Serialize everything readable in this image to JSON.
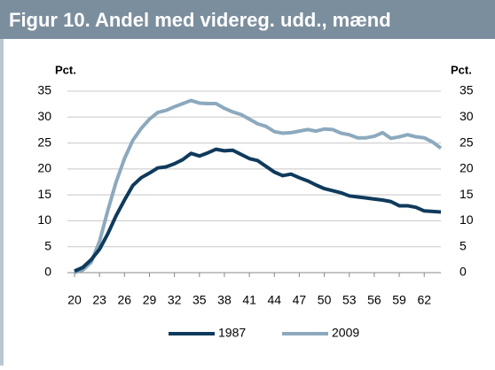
{
  "chart_data": {
    "type": "line",
    "title": "Figur 10. Andel med videreg. udd., mænd",
    "y_label": "Pct.",
    "y2_label": "Pct.",
    "x": [
      20,
      21,
      22,
      23,
      24,
      25,
      26,
      27,
      28,
      29,
      30,
      31,
      32,
      33,
      34,
      35,
      36,
      37,
      38,
      39,
      40,
      41,
      42,
      43,
      44,
      45,
      46,
      47,
      48,
      49,
      50,
      51,
      52,
      53,
      54,
      55,
      56,
      57,
      58,
      59,
      60,
      61,
      62,
      63,
      64
    ],
    "xlim": [
      20,
      64
    ],
    "xticks": [
      20,
      23,
      26,
      29,
      32,
      35,
      38,
      41,
      44,
      47,
      50,
      53,
      56,
      59,
      62
    ],
    "ylim": [
      0,
      35
    ],
    "yticks": [
      0,
      5,
      10,
      15,
      20,
      25,
      30,
      35
    ],
    "y2lim": [
      0,
      35
    ],
    "y2ticks": [
      0,
      5,
      10,
      15,
      20,
      25,
      30,
      35
    ],
    "grid": true,
    "legend": "bottom",
    "series": [
      {
        "name": "1987",
        "color": "#0f3a5c",
        "values": [
          0.3,
          1,
          2.5,
          4.5,
          7.5,
          11,
          14,
          16.8,
          18.3,
          19.2,
          20.2,
          20.4,
          21,
          21.8,
          23,
          22.5,
          23.1,
          23.8,
          23.5,
          23.6,
          22.8,
          22,
          21.6,
          20.5,
          19.4,
          18.7,
          19,
          18.3,
          17.7,
          16.9,
          16.2,
          15.8,
          15.4,
          14.8,
          14.6,
          14.4,
          14.2,
          14,
          13.7,
          12.9,
          12.9,
          12.6,
          11.9,
          11.8,
          11.7
        ]
      },
      {
        "name": "2009",
        "color": "#8ca9be",
        "values": [
          0,
          0.5,
          2,
          6,
          12,
          17.5,
          22,
          25.5,
          27.8,
          29.6,
          30.9,
          31.3,
          32,
          32.6,
          33.2,
          32.7,
          32.6,
          32.6,
          31.7,
          31,
          30.5,
          29.6,
          28.7,
          28.2,
          27.2,
          26.9,
          27,
          27.3,
          27.6,
          27.3,
          27.7,
          27.6,
          26.9,
          26.6,
          26,
          26,
          26.3,
          27,
          25.9,
          26.2,
          26.6,
          26.2,
          26,
          25.2,
          24
        ]
      }
    ]
  }
}
